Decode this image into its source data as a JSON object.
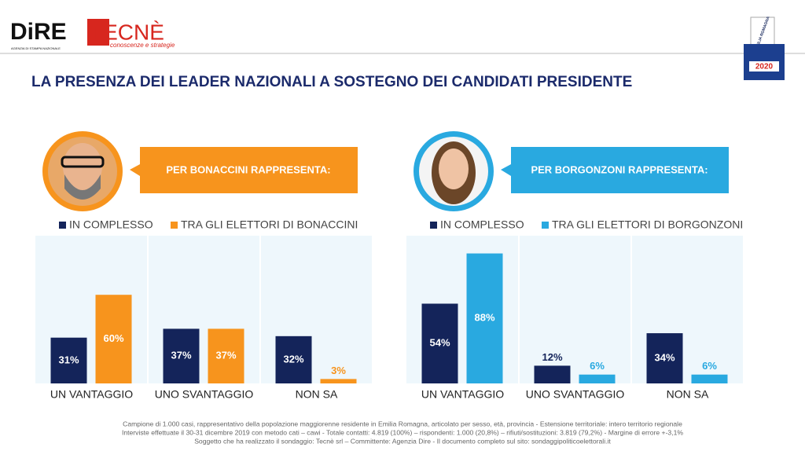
{
  "header": {
    "dire_logo": "DiRE",
    "dire_tagline": "AGENZIA DI STAMPA NAZIONALE",
    "tecne_logo": "TECNÈ",
    "tecne_tagline": "conoscenze e strategie",
    "badge_region": "EMILIA ROMAGNA",
    "badge_year": "2020"
  },
  "title": "LA PRESENZA DEI LEADER NAZIONALI A SOSTEGNO DEI CANDIDATI PRESIDENTE",
  "chart_data": [
    {
      "type": "bar",
      "annotation": "PER BONACCINI RAPPRESENTA:",
      "categories": [
        "UN VANTAGGIO",
        "UNO SVANTAGGIO",
        "NON SA"
      ],
      "series": [
        {
          "name": "IN COMPLESSO",
          "color": "#14245a",
          "values": [
            31,
            37,
            32
          ],
          "value_labels": [
            "31%",
            "37%",
            "32%"
          ]
        },
        {
          "name": "TRA GLI ELETTORI DI BONACCINI",
          "color": "#f7941d",
          "values": [
            60,
            37,
            3
          ],
          "value_labels": [
            "60%",
            "37%",
            "3%"
          ]
        }
      ]
    },
    {
      "type": "bar",
      "annotation": "PER BORGONZONI RAPPRESENTA:",
      "categories": [
        "UN VANTAGGIO",
        "UNO SVANTAGGIO",
        "NON SA"
      ],
      "series": [
        {
          "name": "IN COMPLESSO",
          "color": "#14245a",
          "values": [
            54,
            12,
            34
          ],
          "value_labels": [
            "54%",
            "12%",
            "34%"
          ]
        },
        {
          "name": "TRA GLI ELETTORI DI BORGONZONI",
          "color": "#29a9e0",
          "values": [
            88,
            6,
            6
          ],
          "value_labels": [
            "88%",
            "6%",
            "6%"
          ]
        }
      ]
    }
  ],
  "footer": [
    "Campione di 1.000 casi, rappresentativo della popolazione maggiorenne residente in Emilia Romagna, articolato per sesso, età, provincia - Estensione territoriale: intero territorio regionale",
    "Interviste effettuate il 30-31 dicembre 2019 con metodo cati – cawi - Totale contatti: 4.819 (100%) – rispondenti: 1.000 (20,8%) – rifiuti/sostituzioni: 3.819 (79,2%) - Margine di errore +-3,1%",
    "Soggetto che ha realizzato il sondaggio: Tecnè srl – Committente: Agenzia Dire - Il documento completo sul sito: sondaggipoliticoelettorali.it"
  ]
}
